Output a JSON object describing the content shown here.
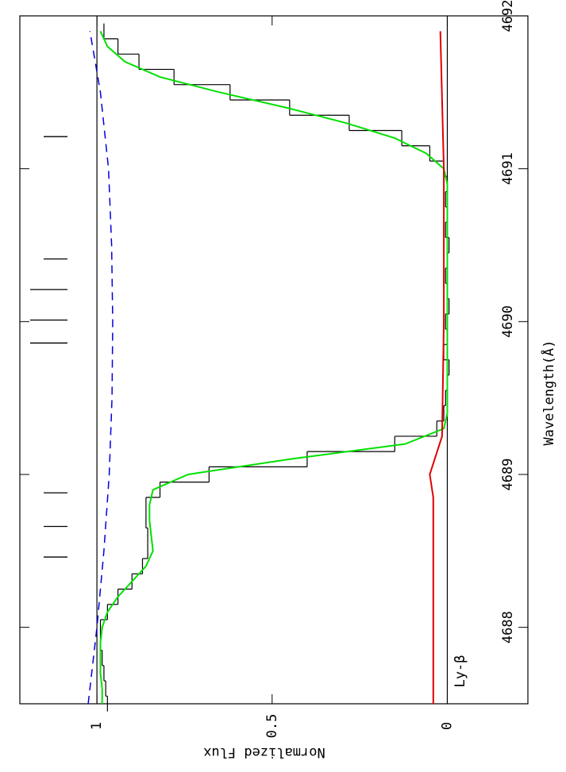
{
  "chart_data": {
    "type": "line",
    "xlabel": "Wavelength(Å)",
    "ylabel": "Normalized Flux",
    "annotation": "Ly-β",
    "xlim": [
      4687.5,
      4692.0
    ],
    "ylim": [
      -0.23,
      1.22
    ],
    "xticks": [
      4688,
      4689,
      4690,
      4691,
      4692
    ],
    "yticks": [
      0,
      0.5,
      1
    ],
    "reference_lines": [
      0,
      1
    ],
    "markers": [
      4688.46,
      4688.66,
      4688.88,
      4689.86,
      4690.01,
      4690.21,
      4690.41,
      4691.21
    ],
    "series": [
      {
        "style": "step",
        "color": "#000000",
        "x": [
          4687.5,
          4687.6,
          4687.7,
          4687.8,
          4687.9,
          4688.0,
          4688.1,
          4688.2,
          4688.3,
          4688.4,
          4688.5,
          4688.6,
          4688.7,
          4688.8,
          4688.9,
          4689.0,
          4689.1,
          4689.2,
          4689.3,
          4689.4,
          4689.5,
          4689.6,
          4689.7,
          4689.8,
          4689.9,
          4690.0,
          4690.1,
          4690.2,
          4690.3,
          4690.4,
          4690.5,
          4690.6,
          4690.7,
          4690.8,
          4690.9,
          4691.0,
          4691.1,
          4691.2,
          4691.3,
          4691.4,
          4691.5,
          4691.6,
          4691.7,
          4691.8,
          4691.9
        ],
        "values": [
          0.97,
          0.975,
          0.98,
          0.985,
          0.99,
          0.99,
          0.97,
          0.94,
          0.9,
          0.87,
          0.855,
          0.855,
          0.86,
          0.86,
          0.82,
          0.68,
          0.4,
          0.15,
          0.03,
          0.01,
          0.005,
          0,
          -0.005,
          0.01,
          0,
          0.005,
          -0.005,
          0,
          0.005,
          0,
          -0.005,
          0.005,
          0,
          0.005,
          0,
          0.01,
          0.05,
          0.13,
          0.28,
          0.45,
          0.62,
          0.78,
          0.88,
          0.94,
          0.98
        ]
      },
      {
        "style": "solid",
        "color": "#00e000",
        "x": [
          4687.5,
          4687.6,
          4687.7,
          4687.8,
          4687.9,
          4688.0,
          4688.1,
          4688.2,
          4688.3,
          4688.4,
          4688.5,
          4688.6,
          4688.7,
          4688.8,
          4688.9,
          4689.0,
          4689.1,
          4689.2,
          4689.3,
          4689.4,
          4689.5,
          4689.6,
          4689.7,
          4689.8,
          4689.9,
          4690.0,
          4690.1,
          4690.2,
          4690.3,
          4690.4,
          4690.5,
          4690.6,
          4690.7,
          4690.8,
          4690.9,
          4691.0,
          4691.1,
          4691.2,
          4691.3,
          4691.4,
          4691.5,
          4691.6,
          4691.7,
          4691.8,
          4691.9
        ],
        "values": [
          0.985,
          0.985,
          0.99,
          0.99,
          0.99,
          0.985,
          0.97,
          0.94,
          0.9,
          0.86,
          0.84,
          0.845,
          0.85,
          0.85,
          0.84,
          0.74,
          0.45,
          0.12,
          0.01,
          0,
          0,
          0,
          0,
          0,
          0,
          0,
          0,
          0,
          0,
          0,
          0,
          0,
          0,
          0,
          0,
          0.01,
          0.06,
          0.15,
          0.29,
          0.46,
          0.65,
          0.82,
          0.92,
          0.97,
          0.99
        ]
      },
      {
        "style": "solid",
        "color": "#e00000",
        "x": [
          4687.5,
          4688.85,
          4689.0,
          4689.25,
          4690.0,
          4691.0,
          4691.9
        ],
        "values": [
          0.04,
          0.04,
          0.05,
          0.015,
          0.01,
          0.01,
          0.02
        ]
      },
      {
        "style": "dashed",
        "color": "#0000e0",
        "x": [
          4687.5,
          4688.0,
          4688.5,
          4689.0,
          4689.5,
          4690.0,
          4690.5,
          4691.0,
          4691.5,
          4691.9
        ],
        "values": [
          1.025,
          1.0,
          0.98,
          0.965,
          0.957,
          0.955,
          0.958,
          0.967,
          0.99,
          1.02
        ]
      }
    ]
  }
}
